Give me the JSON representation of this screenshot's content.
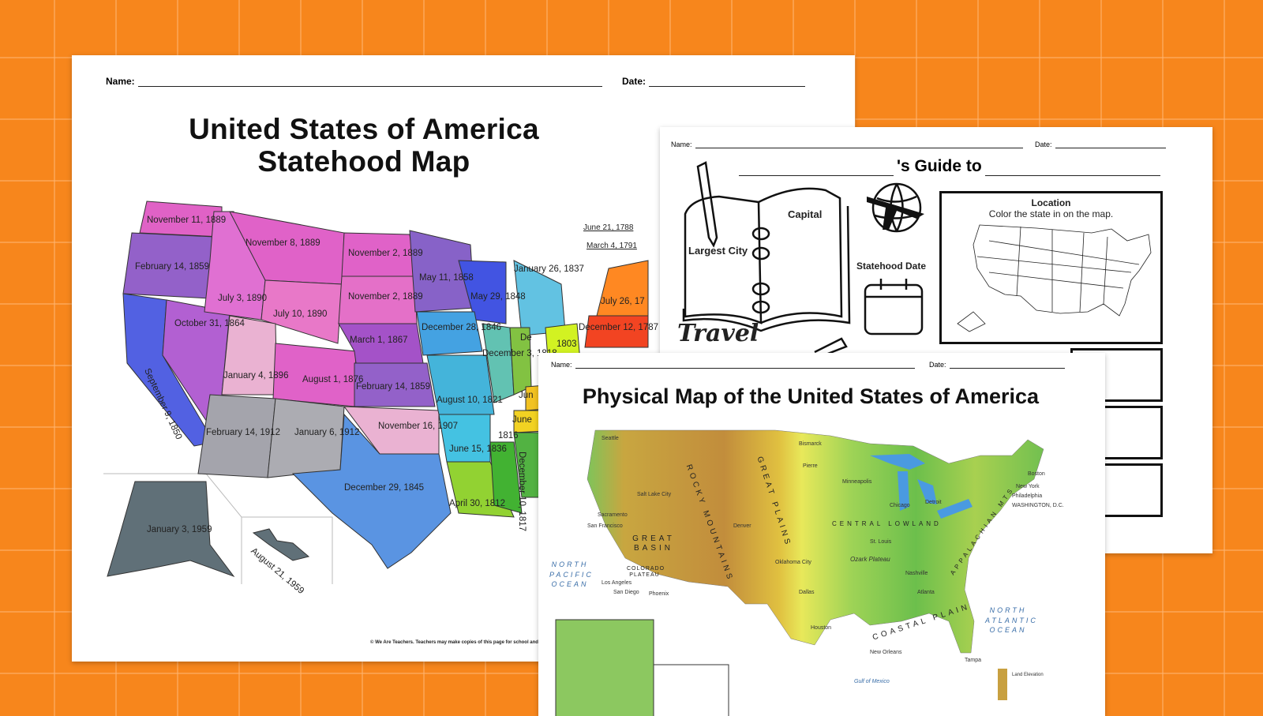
{
  "colors": {
    "background": "#f7861c",
    "grid": "#ffb46e"
  },
  "statehood_sheet": {
    "name_label": "Name:",
    "date_label": "Date:",
    "title": "United States of America Statehood Map",
    "footer": "© We Are Teachers. Teachers may make copies of this page for school and cla",
    "leader_labels": [
      "June 21, 1788",
      "March 4, 1791"
    ],
    "states": [
      {
        "id": "wa",
        "label": "November 11, 1889",
        "color": "#e062c6"
      },
      {
        "id": "or",
        "label": "February 14, 1859",
        "color": "#9361c9"
      },
      {
        "id": "ca",
        "label": "September 9, 1850",
        "color": "#5261e2"
      },
      {
        "id": "nv",
        "label": "October 31, 1864",
        "color": "#b260d2"
      },
      {
        "id": "id",
        "label": "July 3, 1890",
        "color": "#e070d2"
      },
      {
        "id": "mt",
        "label": "November 8, 1889",
        "color": "#e062c8"
      },
      {
        "id": "wy",
        "label": "July 10, 1890",
        "color": "#e878c8"
      },
      {
        "id": "ut",
        "label": "January 4, 1896",
        "color": "#eab2d2"
      },
      {
        "id": "co",
        "label": "August 1, 1876",
        "color": "#e062c8"
      },
      {
        "id": "az",
        "label": "February 14, 1912",
        "color": "#a4a4ac"
      },
      {
        "id": "nm",
        "label": "January 6, 1912",
        "color": "#acacb2"
      },
      {
        "id": "nd",
        "label": "November 2, 1889",
        "color": "#e062c8"
      },
      {
        "id": "sd",
        "label": "November 2, 1889",
        "color": "#e470c8"
      },
      {
        "id": "ne",
        "label": "March 1, 1867",
        "color": "#a452c8"
      },
      {
        "id": "ks",
        "label": "February 14, 1859",
        "color": "#9361c9"
      },
      {
        "id": "ok",
        "label": "November 16, 1907",
        "color": "#eab2d2"
      },
      {
        "id": "tx",
        "label": "December 29, 1845",
        "color": "#5a94e2"
      },
      {
        "id": "mn",
        "label": "May 11, 1858",
        "color": "#8762c8"
      },
      {
        "id": "wi",
        "label": "May 29, 1848",
        "color": "#4254e2"
      },
      {
        "id": "ia",
        "label": "December 28, 1846",
        "color": "#44a2e2"
      },
      {
        "id": "mo",
        "label": "August 10, 1821",
        "color": "#44b4da"
      },
      {
        "id": "ar",
        "label": "June 15, 1836",
        "color": "#44c2e2"
      },
      {
        "id": "la",
        "label": "April 30, 1812",
        "color": "#92d232"
      },
      {
        "id": "il",
        "label": "December 3, 1818",
        "color": "#62c2b2"
      },
      {
        "id": "mi",
        "label": "January 26, 1837",
        "color": "#62c2e2"
      },
      {
        "id": "ms",
        "label": "December 10, 1817",
        "color": "#42b232"
      },
      {
        "id": "in",
        "label": "De",
        "color": "#82c242"
      },
      {
        "id": "oh",
        "label": "1803",
        "color": "#d2f222"
      },
      {
        "id": "tn",
        "label": "Jun",
        "color": "#f2c222"
      },
      {
        "id": "ky",
        "label": "June",
        "color": "#f2d222"
      },
      {
        "id": "al",
        "label": "1816",
        "color": "#52b242"
      },
      {
        "id": "ny",
        "label": "July 26, 17",
        "color": "#ff8822"
      },
      {
        "id": "pa",
        "label": "December 12, 1787",
        "color": "#f24422"
      },
      {
        "id": "ak",
        "label": "January 3, 1959",
        "color": "#607078"
      },
      {
        "id": "hi",
        "label": "August 21, 1959",
        "color": "#607078"
      }
    ]
  },
  "guide_sheet": {
    "name_label": "Name:",
    "date_label": "Date:",
    "title": "'s Guide to",
    "labels": {
      "capital": "Capital",
      "largest_city": "Largest City",
      "statehood_date": "Statehood Date",
      "travel": "Travel"
    },
    "location_box": {
      "title": "Location",
      "instruction": "Color the state in on the map."
    }
  },
  "physical_sheet": {
    "name_label": "Name:",
    "date_label": "Date:",
    "title": "Physical Map of the United States of America",
    "regions": [
      "ROCKY MOUNTAINS",
      "GREAT PLAINS",
      "GREAT BASIN",
      "COLORADO PLATEAU",
      "CENTRAL LOWLAND",
      "APPALACHIAN MTS",
      "COASTAL PLAIN",
      "Ozark Plateau"
    ],
    "oceans": [
      "NORTH PACIFIC OCEAN",
      "NORTH ATLANTIC OCEAN"
    ],
    "gulf": "Gulf of Mexico",
    "cities": [
      "Seattle",
      "San Francisco",
      "Los Angeles",
      "San Diego",
      "Sacramento",
      "Salt Lake City",
      "Denver",
      "Phoenix",
      "Dallas",
      "Houston",
      "Oklahoma City",
      "Minneapolis",
      "Chicago",
      "Detroit",
      "St. Louis",
      "Atlanta",
      "Nashville",
      "New Orleans",
      "New York",
      "Philadelphia",
      "WASHINGTON, D.C.",
      "Boston",
      "Tampa",
      "Bismarck",
      "Pierre"
    ],
    "legend_title": "Land Elevation"
  }
}
